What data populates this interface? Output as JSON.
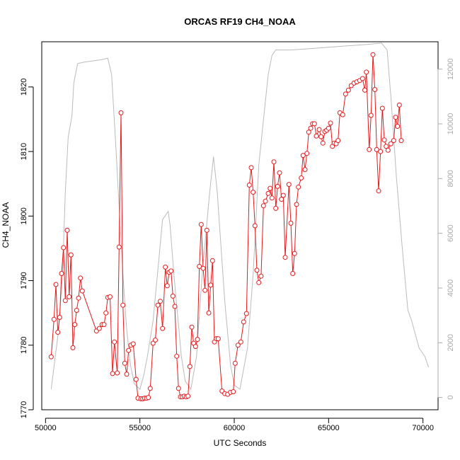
{
  "chart_data": {
    "type": "line",
    "title": "ORCAS RF19 CH4_NOAA",
    "xlabel": "UTC Seconds",
    "ylabel": "CH4_NOAA",
    "xlim": [
      49800,
      70800
    ],
    "ylim": [
      1770,
      1827
    ],
    "y2lim": [
      -450,
      13000
    ],
    "x_ticks": [
      50000,
      55000,
      60000,
      65000,
      70000
    ],
    "y_ticks": [
      1770,
      1780,
      1790,
      1800,
      1810,
      1820
    ],
    "y2_ticks": [
      0,
      2000,
      4000,
      6000,
      8000,
      10000,
      12000
    ],
    "grid": false,
    "series": [
      {
        "name": "",
        "axis": "left",
        "style": "points-lines",
        "color": "#e41a1c",
        "points": [
          [
            50300,
            1778.2
          ],
          [
            50450,
            1784.0
          ],
          [
            50550,
            1789.4
          ],
          [
            50650,
            1782.0
          ],
          [
            50750,
            1784.3
          ],
          [
            50850,
            1791.1
          ],
          [
            50950,
            1795.1
          ],
          [
            51050,
            1786.9
          ],
          [
            51150,
            1797.8
          ],
          [
            51250,
            1787.5
          ],
          [
            51350,
            1794.0
          ],
          [
            51450,
            1779.6
          ],
          [
            51550,
            1783.2
          ],
          [
            51650,
            1785.4
          ],
          [
            51750,
            1787.3
          ],
          [
            51850,
            1790.4
          ],
          [
            51950,
            1788.4
          ],
          [
            52700,
            1782.2
          ],
          [
            52850,
            1782.6
          ],
          [
            53000,
            1783.2
          ],
          [
            53100,
            1783.2
          ],
          [
            53200,
            1785.0
          ],
          [
            53300,
            1787.4
          ],
          [
            53420,
            1787.5
          ],
          [
            53550,
            1775.6
          ],
          [
            53650,
            1780.5
          ],
          [
            53800,
            1775.7
          ],
          [
            53900,
            1795.2
          ],
          [
            54000,
            1816.0
          ],
          [
            54100,
            1786.2
          ],
          [
            54200,
            1777.2
          ],
          [
            54300,
            1775.5
          ],
          [
            54400,
            1779.2
          ],
          [
            54520,
            1780.0
          ],
          [
            54650,
            1780.2
          ],
          [
            54800,
            1774.7
          ],
          [
            54900,
            1771.8
          ],
          [
            55050,
            1771.7
          ],
          [
            55150,
            1771.7
          ],
          [
            55250,
            1771.8
          ],
          [
            55350,
            1771.8
          ],
          [
            55450,
            1771.9
          ],
          [
            55550,
            1773.3
          ],
          [
            55700,
            1780.3
          ],
          [
            55820,
            1780.8
          ],
          [
            55950,
            1786.2
          ],
          [
            56080,
            1786.8
          ],
          [
            56200,
            1782.6
          ],
          [
            56350,
            1792.1
          ],
          [
            56450,
            1789.2
          ],
          [
            56550,
            1791.3
          ],
          [
            56650,
            1791.5
          ],
          [
            56750,
            1787.6
          ],
          [
            56850,
            1786.0
          ],
          [
            56950,
            1778.3
          ],
          [
            57050,
            1773.3
          ],
          [
            57150,
            1772.0
          ],
          [
            57250,
            1772.0
          ],
          [
            57350,
            1772.1
          ],
          [
            57450,
            1772.0
          ],
          [
            57550,
            1772.1
          ],
          [
            57650,
            1776.7
          ],
          [
            57750,
            1782.8
          ],
          [
            57850,
            1780.3
          ],
          [
            57950,
            1779.8
          ],
          [
            58050,
            1780.9
          ],
          [
            58150,
            1792.2
          ],
          [
            58250,
            1798.7
          ],
          [
            58350,
            1791.9
          ],
          [
            58450,
            1788.5
          ],
          [
            58550,
            1797.8
          ],
          [
            58650,
            1785.0
          ],
          [
            58750,
            1789.3
          ],
          [
            58850,
            1793.1
          ],
          [
            58950,
            1780.5
          ],
          [
            59050,
            1781.0
          ],
          [
            59150,
            1781.0
          ],
          [
            59350,
            1772.9
          ],
          [
            59500,
            1772.5
          ],
          [
            59650,
            1772.4
          ],
          [
            59800,
            1772.7
          ],
          [
            59950,
            1772.8
          ],
          [
            60050,
            1777.2
          ],
          [
            60200,
            1780.0
          ],
          [
            60350,
            1780.5
          ],
          [
            60500,
            1783.6
          ],
          [
            60650,
            1784.9
          ],
          [
            60800,
            1804.8
          ],
          [
            60900,
            1807.5
          ],
          [
            61000,
            1803.7
          ],
          [
            61100,
            1798.5
          ],
          [
            61200,
            1791.6
          ],
          [
            61300,
            1789.7
          ],
          [
            61420,
            1790.7
          ],
          [
            61550,
            1801.6
          ],
          [
            61650,
            1802.3
          ],
          [
            61800,
            1803.5
          ],
          [
            61900,
            1804.3
          ],
          [
            62000,
            1802.8
          ],
          [
            62100,
            1808.4
          ],
          [
            62200,
            1801.2
          ],
          [
            62300,
            1804.6
          ],
          [
            62400,
            1806.7
          ],
          [
            62500,
            1802.6
          ],
          [
            62600,
            1803.2
          ],
          [
            62700,
            1793.6
          ],
          [
            62900,
            1804.9
          ],
          [
            63000,
            1798.9
          ],
          [
            63100,
            1791.1
          ],
          [
            63200,
            1794.2
          ],
          [
            63300,
            1801.8
          ],
          [
            63400,
            1804.5
          ],
          [
            63550,
            1805.9
          ],
          [
            63650,
            1809.4
          ],
          [
            63750,
            1807.2
          ],
          [
            63850,
            1809.7
          ],
          [
            63950,
            1813.0
          ],
          [
            64050,
            1813.6
          ],
          [
            64150,
            1814.3
          ],
          [
            64250,
            1814.3
          ],
          [
            64350,
            1812.4
          ],
          [
            64500,
            1813.4
          ],
          [
            64600,
            1812.3
          ],
          [
            64700,
            1811.3
          ],
          [
            64800,
            1813.1
          ],
          [
            64900,
            1813.3
          ],
          [
            65000,
            1813.6
          ],
          [
            65100,
            1814.4
          ],
          [
            65200,
            1810.8
          ],
          [
            65300,
            1811.3
          ],
          [
            65400,
            1811.2
          ],
          [
            65500,
            1811.7
          ],
          [
            65600,
            1816.0
          ],
          [
            65750,
            1815.7
          ],
          [
            65900,
            1818.9
          ],
          [
            66050,
            1819.5
          ],
          [
            66200,
            1820.2
          ],
          [
            66350,
            1820.6
          ],
          [
            66500,
            1820.8
          ],
          [
            66650,
            1821.0
          ],
          [
            66800,
            1821.3
          ],
          [
            66920,
            1819.5
          ],
          [
            67000,
            1822.3
          ],
          [
            67150,
            1810.3
          ],
          [
            67250,
            1815.6
          ],
          [
            67350,
            1825.0
          ],
          [
            67450,
            1819.6
          ],
          [
            67550,
            1810.3
          ],
          [
            67650,
            1803.9
          ],
          [
            67750,
            1810.0
          ],
          [
            67850,
            1816.7
          ],
          [
            67950,
            1811.8
          ],
          [
            68050,
            1810.8
          ],
          [
            68150,
            1810.2
          ],
          [
            68300,
            1811.2
          ],
          [
            68450,
            1811.7
          ],
          [
            68550,
            1815.3
          ],
          [
            68650,
            1813.9
          ],
          [
            68750,
            1817.2
          ],
          [
            68850,
            1811.7
          ]
        ]
      },
      {
        "name": "",
        "axis": "right",
        "style": "line",
        "color": "#bbbbbb",
        "points": [
          [
            50300,
            300
          ],
          [
            50700,
            2500
          ],
          [
            50900,
            4500
          ],
          [
            51050,
            7500
          ],
          [
            51200,
            9500
          ],
          [
            51400,
            10300
          ],
          [
            51500,
            11500
          ],
          [
            51700,
            12200
          ],
          [
            52000,
            12250
          ],
          [
            52500,
            12300
          ],
          [
            53000,
            12350
          ],
          [
            53300,
            12400
          ],
          [
            53500,
            11800
          ],
          [
            53700,
            9500
          ],
          [
            53900,
            7000
          ],
          [
            54100,
            4500
          ],
          [
            54300,
            2500
          ],
          [
            54500,
            1200
          ],
          [
            54700,
            500
          ],
          [
            55000,
            300
          ],
          [
            55200,
            800
          ],
          [
            55400,
            1500
          ],
          [
            55700,
            2800
          ],
          [
            56000,
            5000
          ],
          [
            56200,
            6500
          ],
          [
            56500,
            6800
          ],
          [
            56600,
            6300
          ],
          [
            56800,
            4500
          ],
          [
            57000,
            3000
          ],
          [
            57200,
            1500
          ],
          [
            57400,
            600
          ],
          [
            57700,
            300
          ],
          [
            58000,
            1500
          ],
          [
            58300,
            4500
          ],
          [
            58700,
            7500
          ],
          [
            58900,
            8800
          ],
          [
            59100,
            7500
          ],
          [
            59300,
            5500
          ],
          [
            59500,
            3500
          ],
          [
            59800,
            1200
          ],
          [
            60000,
            450
          ],
          [
            60300,
            300
          ],
          [
            60700,
            1800
          ],
          [
            61000,
            4500
          ],
          [
            61300,
            8500
          ],
          [
            61600,
            10500
          ],
          [
            61800,
            11800
          ],
          [
            62000,
            12500
          ],
          [
            62200,
            12700
          ],
          [
            63000,
            12700
          ],
          [
            64000,
            12750
          ],
          [
            65000,
            12800
          ],
          [
            66000,
            12850
          ],
          [
            67000,
            12900
          ],
          [
            67800,
            12950
          ],
          [
            68100,
            12700
          ],
          [
            68300,
            11000
          ],
          [
            68600,
            8000
          ],
          [
            68900,
            5500
          ],
          [
            69200,
            3200
          ],
          [
            69400,
            2800
          ],
          [
            69600,
            2300
          ],
          [
            69800,
            1800
          ],
          [
            70100,
            1500
          ],
          [
            70300,
            1100
          ]
        ]
      }
    ]
  }
}
